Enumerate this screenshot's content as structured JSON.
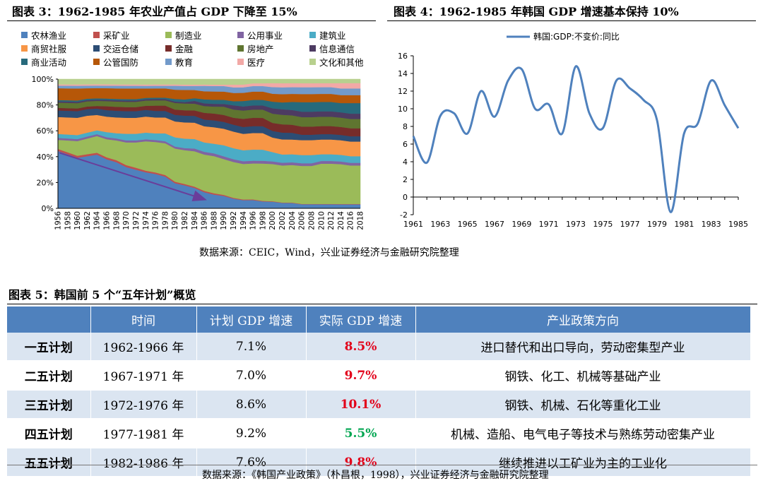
{
  "fig3": {
    "title": "图表 3：1962-1985 年农业产值占 GDP 下降至 15%",
    "legend": [
      {
        "label": "农林渔业",
        "color": "#4f81bd"
      },
      {
        "label": "采矿业",
        "color": "#c0504d"
      },
      {
        "label": "制造业",
        "color": "#9bbb59"
      },
      {
        "label": "公用事业",
        "color": "#8064a2"
      },
      {
        "label": "建筑业",
        "color": "#4bacc6"
      },
      {
        "label": "商贸社服",
        "color": "#f79646"
      },
      {
        "label": "交运仓储",
        "color": "#2c4d75"
      },
      {
        "label": "金融",
        "color": "#772c2a"
      },
      {
        "label": "房地产",
        "color": "#5f7530"
      },
      {
        "label": "信息通信",
        "color": "#4d3b62"
      },
      {
        "label": "商业活动",
        "color": "#276a7c"
      },
      {
        "label": "公管国防",
        "color": "#b65708"
      },
      {
        "label": "教育",
        "color": "#729aca"
      },
      {
        "label": "医疗",
        "color": "#f2a9a6"
      },
      {
        "label": "文化和其他",
        "color": "#b8d08e"
      }
    ]
  },
  "fig4": {
    "title": "图表 4：1962-1985 年韩国 GDP 增速基本保持 10%"
  },
  "source1": "数据来源：CEIC，Wind，兴业证券经济与金融研究院整理",
  "fig5": {
    "title": "图表 5：韩国前 5 个“五年计划”概览",
    "headers": [
      "",
      "时间",
      "计划 GDP 增速",
      "实际 GDP 增速",
      "产业政策方向"
    ],
    "rows": [
      {
        "plan": "一五计划",
        "period": "1962-1966 年",
        "planned": "7.1%",
        "actual": "8.5%",
        "actual_color": "#e2001a",
        "policy": "进口替代和出口导向，劳动密集型产业"
      },
      {
        "plan": "二五计划",
        "period": "1967-1971 年",
        "planned": "7.0%",
        "actual": "9.7%",
        "actual_color": "#e2001a",
        "policy": "钢铁、化工、机械等基础产业"
      },
      {
        "plan": "三五计划",
        "period": "1972-1976 年",
        "planned": "8.6%",
        "actual": "10.1%",
        "actual_color": "#e2001a",
        "policy": "钢铁、机械、石化等重化工业"
      },
      {
        "plan": "四五计划",
        "period": "1977-1981 年",
        "planned": "9.2%",
        "actual": "5.5%",
        "actual_color": "#00a651",
        "policy": "机械、造船、电气电子等技术与熟练劳动密集产业"
      },
      {
        "plan": "五五计划",
        "period": "1982-1986 年",
        "planned": "7.6%",
        "actual": "9.8%",
        "actual_color": "#e2001a",
        "policy": "继续推进以工矿业为主的工业化"
      }
    ]
  },
  "source2": "数据来源：《韩国产业政策》（朴昌根，1998），兴业证券经济与金融研究院整理",
  "chart_data": [
    {
      "type": "area",
      "stacked": true,
      "percent": true,
      "x": [
        1956,
        1958,
        1960,
        1962,
        1964,
        1966,
        1968,
        1970,
        1972,
        1974,
        1976,
        1978,
        1980,
        1982,
        1984,
        1986,
        1988,
        1990,
        1992,
        1994,
        1996,
        1998,
        2000,
        2002,
        2004,
        2006,
        2008,
        2010,
        2012,
        2014,
        2016,
        2018
      ],
      "xticks": [
        1956,
        1958,
        1960,
        1962,
        1964,
        1966,
        1968,
        1970,
        1972,
        1974,
        1976,
        1978,
        1980,
        1982,
        1984,
        1986,
        1988,
        1990,
        1992,
        1994,
        1996,
        1998,
        2000,
        2002,
        2004,
        2006,
        2008,
        2010,
        2012,
        2014,
        2016,
        2018
      ],
      "yticks": [
        "0%",
        "20%",
        "40%",
        "60%",
        "80%",
        "100%"
      ],
      "ylim": [
        0,
        100
      ],
      "series": [
        {
          "name": "农林渔业",
          "values": [
            44,
            41,
            38,
            40,
            42,
            38,
            35,
            31,
            29,
            27,
            26,
            24,
            19,
            17,
            15,
            12,
            10,
            9,
            7,
            6,
            6,
            5,
            5,
            4,
            4,
            3,
            3,
            3,
            3,
            3,
            3,
            3
          ]
        },
        {
          "name": "采矿业",
          "values": [
            1.5,
            1.5,
            1.5,
            1.5,
            1.5,
            1.5,
            1.5,
            1.5,
            1.5,
            1.2,
            1.2,
            1.2,
            1.2,
            1,
            1,
            1,
            1,
            0.8,
            0.6,
            0.5,
            0.5,
            0.4,
            0.4,
            0.3,
            0.3,
            0.3,
            0.3,
            0.3,
            0.3,
            0.3,
            0.3,
            0.3
          ]
        },
        {
          "name": "制造业",
          "values": [
            7,
            9,
            11,
            12,
            13,
            14,
            15,
            17,
            19,
            22,
            23,
            24,
            25,
            25,
            26,
            27,
            27,
            26,
            26,
            26,
            26,
            27,
            28,
            27,
            28,
            28,
            28,
            30,
            30,
            30,
            29,
            29
          ]
        },
        {
          "name": "公用事业",
          "values": [
            1.5,
            1.5,
            1.5,
            1.5,
            1.5,
            1.5,
            1.5,
            1.5,
            1.5,
            1.5,
            1.5,
            1.5,
            1.5,
            1.5,
            2,
            2,
            2,
            2,
            2,
            2,
            2,
            2,
            2,
            2,
            2,
            2,
            2,
            2,
            2,
            2,
            2,
            2
          ]
        },
        {
          "name": "建筑业",
          "values": [
            3,
            3,
            3,
            3,
            3,
            4,
            4,
            5,
            5,
            5,
            5,
            6,
            7,
            7,
            7,
            7,
            7,
            8,
            8,
            8,
            8,
            8,
            7,
            6,
            6,
            6,
            6,
            5,
            5,
            5,
            5,
            5
          ]
        },
        {
          "name": "商贸社服",
          "values": [
            13,
            13,
            13,
            13,
            12,
            12,
            12,
            12,
            12,
            12,
            12,
            12,
            12,
            12,
            12,
            12,
            12,
            12,
            12,
            12,
            12,
            12,
            11,
            11,
            11,
            11,
            11,
            11,
            11,
            11,
            11,
            11
          ]
        },
        {
          "name": "交运仓储",
          "values": [
            5,
            5,
            5,
            5,
            5,
            5,
            5,
            5,
            5,
            5,
            5,
            5,
            5,
            5,
            5,
            5,
            5,
            5,
            5,
            5,
            5,
            5,
            5,
            5,
            5,
            4,
            4,
            4,
            4,
            4,
            4,
            4
          ]
        },
        {
          "name": "金融",
          "values": [
            2,
            2,
            2,
            2,
            2,
            3,
            3,
            3,
            3,
            3,
            4,
            4,
            4,
            4,
            4,
            5,
            5,
            5,
            5,
            6,
            6,
            6,
            6,
            6,
            6,
            6,
            6,
            6,
            6,
            6,
            6,
            6
          ]
        },
        {
          "name": "房地产",
          "values": [
            4,
            4,
            4,
            4,
            4,
            4,
            4,
            4,
            4,
            4,
            4,
            4,
            5,
            5,
            5,
            5,
            5,
            6,
            6,
            6,
            6,
            6,
            7,
            7,
            7,
            7,
            7,
            7,
            7,
            7,
            7,
            7
          ]
        },
        {
          "name": "信息通信",
          "values": [
            1,
            1,
            1,
            1,
            1,
            1,
            1,
            1,
            1,
            1,
            1,
            1,
            1,
            1,
            2,
            2,
            2,
            2,
            3,
            3,
            3,
            3,
            4,
            4,
            4,
            4,
            4,
            4,
            4,
            4,
            4,
            4
          ]
        },
        {
          "name": "商业活动",
          "values": [
            1,
            1,
            1,
            1,
            1,
            1,
            1,
            1,
            1,
            1,
            1,
            1,
            2,
            2,
            2,
            3,
            3,
            3,
            3,
            4,
            4,
            4,
            5,
            5,
            6,
            7,
            7,
            7,
            7,
            7,
            8,
            8
          ]
        },
        {
          "name": "公管国防",
          "values": [
            9,
            9,
            9,
            8,
            8,
            8,
            8,
            8,
            8,
            7,
            7,
            7,
            7,
            7,
            6,
            6,
            6,
            6,
            6,
            6,
            6,
            6,
            6,
            6,
            6,
            6,
            6,
            6,
            6,
            6,
            6,
            6
          ]
        },
        {
          "name": "教育",
          "values": [
            2,
            2,
            2,
            2,
            2,
            2,
            2,
            2,
            2,
            2,
            2,
            2,
            3,
            3,
            3,
            4,
            4,
            4,
            4,
            4,
            4,
            4,
            5,
            5,
            5,
            5,
            5,
            5,
            5,
            5,
            5,
            5
          ]
        },
        {
          "name": "医疗",
          "values": [
            1,
            1,
            1,
            1,
            1,
            1,
            1,
            1,
            1,
            1,
            1,
            1,
            1,
            1,
            1,
            1,
            1,
            1,
            2,
            2,
            2,
            2,
            3,
            3,
            3,
            3,
            3,
            3,
            3,
            4,
            4,
            4
          ]
        },
        {
          "name": "文化和其他",
          "values": [
            4,
            4,
            4,
            4,
            4,
            4,
            4,
            4,
            4,
            4,
            4,
            4,
            4,
            4,
            4,
            4,
            4,
            4,
            4,
            4,
            3,
            3,
            3,
            3,
            3,
            3,
            3,
            3,
            3,
            3,
            3,
            3
          ]
        }
      ],
      "trend_arrow": {
        "from": [
          1956,
          43
        ],
        "to": [
          1986,
          7
        ],
        "color": "#6a3d9a"
      }
    },
    {
      "type": "line",
      "legend": "韩国:GDP:不变价:同比",
      "x": [
        1961,
        1962,
        1963,
        1964,
        1965,
        1966,
        1967,
        1968,
        1969,
        1970,
        1971,
        1972,
        1973,
        1974,
        1975,
        1976,
        1977,
        1978,
        1979,
        1980,
        1981,
        1982,
        1983,
        1984,
        1985
      ],
      "series": [
        {
          "name": "韩国:GDP:不变价:同比",
          "color": "#4f81bd",
          "values": [
            6.9,
            3.9,
            9.2,
            9.5,
            7.2,
            12.0,
            9.1,
            13.2,
            14.5,
            10.0,
            10.5,
            7.2,
            14.8,
            9.5,
            7.8,
            13.2,
            12.3,
            11.0,
            8.7,
            -1.7,
            7.2,
            8.3,
            13.2,
            10.4,
            7.8
          ]
        }
      ],
      "xticks": [
        1961,
        1963,
        1965,
        1967,
        1969,
        1971,
        1973,
        1975,
        1977,
        1979,
        1981,
        1983,
        1985
      ],
      "yticks": [
        -2,
        0,
        2,
        4,
        6,
        8,
        10,
        12,
        14,
        16
      ],
      "ylim": [
        -2,
        16
      ]
    }
  ]
}
